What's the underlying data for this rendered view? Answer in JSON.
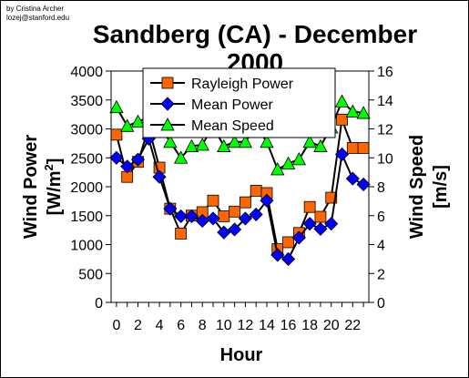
{
  "credit": {
    "line1": "by Cristina Archer",
    "line2": "lozej@stanford.edu"
  },
  "chart_data": {
    "type": "line",
    "title_line1": "Sandberg (CA) - December",
    "title_line2": "2000",
    "xlabel": "Hour",
    "ylabel_left": "Wind Power [W/m²]",
    "ylabel_left_main": "Wind Power",
    "ylabel_left_unit_base": "[W/m",
    "ylabel_left_unit_sup": "2",
    "ylabel_left_unit_end": "]",
    "ylabel_right_main": "Wind Speed",
    "ylabel_right_unit": "[m/s]",
    "x": [
      0,
      1,
      2,
      3,
      4,
      5,
      6,
      7,
      8,
      9,
      10,
      11,
      12,
      13,
      14,
      15,
      16,
      17,
      18,
      19,
      20,
      21,
      22,
      23
    ],
    "xticks": [
      0,
      2,
      4,
      6,
      8,
      10,
      12,
      14,
      16,
      18,
      20,
      22
    ],
    "xlim": [
      -0.5,
      23.5
    ],
    "ylim_left": [
      0,
      4000
    ],
    "yticks_left": [
      0,
      500,
      1000,
      1500,
      2000,
      2500,
      3000,
      3500,
      4000
    ],
    "ylim_right": [
      0,
      16
    ],
    "yticks_right": [
      0,
      2,
      4,
      6,
      8,
      10,
      12,
      14,
      16
    ],
    "legend_position": "top-center",
    "series": [
      {
        "name": "Rayleigh Power",
        "axis": "left",
        "marker": "square",
        "color": "#ff6600",
        "values": [
          2900,
          2170,
          2430,
          3020,
          2330,
          1620,
          1190,
          1500,
          1560,
          1760,
          1490,
          1570,
          1730,
          1930,
          1890,
          920,
          1040,
          1200,
          1650,
          1480,
          1810,
          3160,
          2670,
          2670
        ]
      },
      {
        "name": "Mean Power",
        "axis": "left",
        "marker": "diamond",
        "color": "#0000ff",
        "values": [
          2500,
          2350,
          2470,
          2830,
          2170,
          1620,
          1490,
          1490,
          1410,
          1450,
          1210,
          1260,
          1450,
          1520,
          1760,
          820,
          750,
          1120,
          1360,
          1270,
          1360,
          2560,
          2140,
          2040
        ]
      },
      {
        "name": "Mean Speed",
        "axis": "right",
        "marker": "triangle",
        "color": "#00ff00",
        "values": [
          13.5,
          12.2,
          12.5,
          12.8,
          12.2,
          11.1,
          10.0,
          10.8,
          10.9,
          12.2,
          10.8,
          11.1,
          11.1,
          12.2,
          11.1,
          9.2,
          9.6,
          9.9,
          11.1,
          10.8,
          12.1,
          13.9,
          13.2,
          13.1
        ]
      }
    ]
  }
}
